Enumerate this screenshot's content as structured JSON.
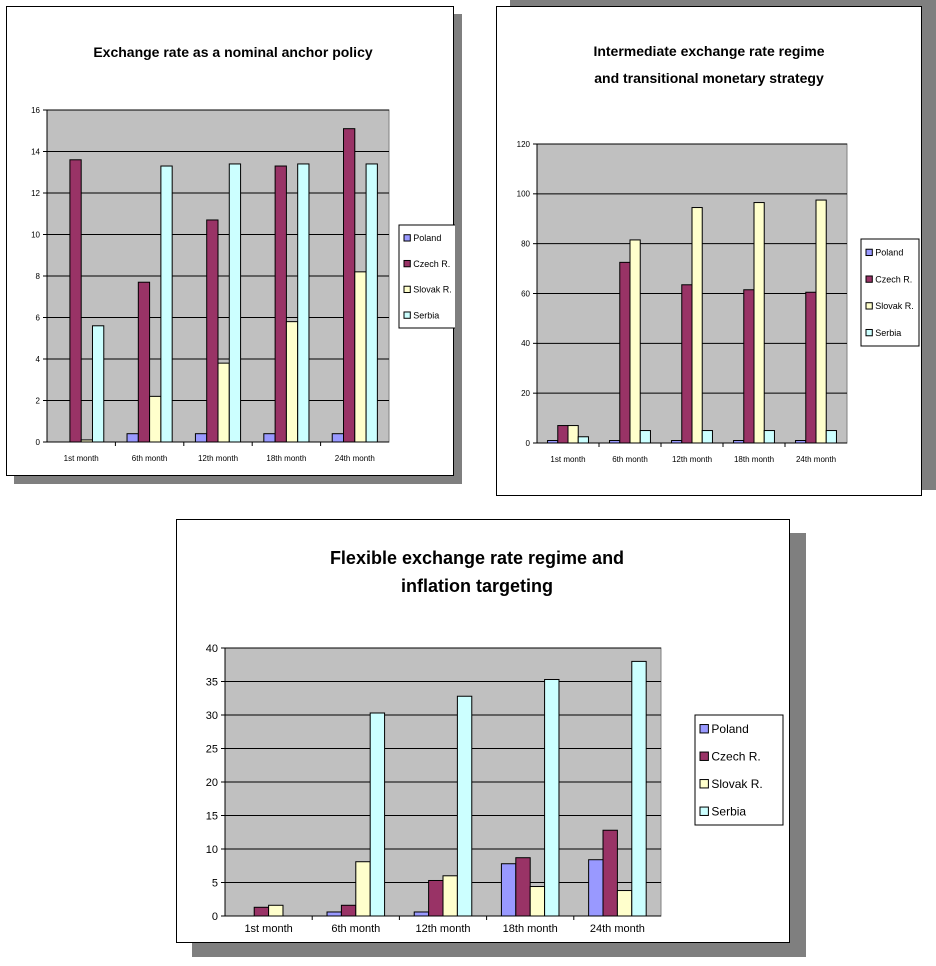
{
  "colors": {
    "plot_area": "#c0c0c0",
    "series": [
      "#9999ff",
      "#993366",
      "#ffffcc",
      "#ccffff"
    ]
  },
  "chart_data": [
    {
      "type": "bar",
      "title": "Exchange rate as a nominal anchor policy",
      "categories": [
        "1st month",
        "6th month",
        "12th month",
        "18th month",
        "24th month"
      ],
      "series": [
        {
          "name": "Poland",
          "values": [
            0,
            0.4,
            0.4,
            0.4,
            0.4
          ]
        },
        {
          "name": "Czech R.",
          "values": [
            13.6,
            7.7,
            10.7,
            13.3,
            15.1
          ]
        },
        {
          "name": "Slovak R.",
          "values": [
            0.1,
            2.2,
            3.8,
            5.8,
            8.2
          ]
        },
        {
          "name": "Serbia",
          "values": [
            5.6,
            13.3,
            13.4,
            13.4,
            13.4
          ]
        }
      ],
      "ylim": [
        0,
        16
      ],
      "yticks": [
        "0",
        "2",
        "4",
        "6",
        "8",
        "10",
        "12",
        "14",
        "16"
      ],
      "grid": true,
      "legend": "right"
    },
    {
      "type": "bar",
      "title": "Intermediate exchange rate regime and transitional monetary strategy",
      "categories": [
        "1st month",
        "6th month",
        "12th month",
        "18th month",
        "24th month"
      ],
      "series": [
        {
          "name": "Poland",
          "values": [
            1,
            1,
            1,
            1,
            1
          ]
        },
        {
          "name": "Czech R.",
          "values": [
            7,
            72.5,
            63.5,
            61.5,
            60.5
          ]
        },
        {
          "name": "Slovak R.",
          "values": [
            7,
            81.5,
            94.5,
            96.5,
            97.5
          ]
        },
        {
          "name": "Serbia",
          "values": [
            2.5,
            5,
            5,
            5,
            5
          ]
        }
      ],
      "ylim": [
        0,
        120
      ],
      "yticks": [
        "0",
        "20",
        "40",
        "60",
        "80",
        "100",
        "120"
      ],
      "grid": true,
      "legend": "right"
    },
    {
      "type": "bar",
      "title": "Flexible exchange rate regime and inflation targeting",
      "categories": [
        "1st month",
        "6th month",
        "12th month",
        "18th month",
        "24th month"
      ],
      "series": [
        {
          "name": "Poland",
          "values": [
            0,
            0.6,
            0.6,
            7.8,
            8.4
          ]
        },
        {
          "name": "Czech R.",
          "values": [
            1.3,
            1.6,
            5.3,
            8.7,
            12.8
          ]
        },
        {
          "name": "Slovak R.",
          "values": [
            1.6,
            8.1,
            6,
            4.4,
            3.8
          ]
        },
        {
          "name": "Serbia",
          "values": [
            0,
            30.3,
            32.8,
            35.3,
            38
          ]
        }
      ],
      "ylim": [
        0,
        40
      ],
      "yticks": [
        "0",
        "5",
        "10",
        "15",
        "20",
        "25",
        "30",
        "35",
        "40"
      ],
      "grid": true,
      "legend": "right"
    }
  ]
}
